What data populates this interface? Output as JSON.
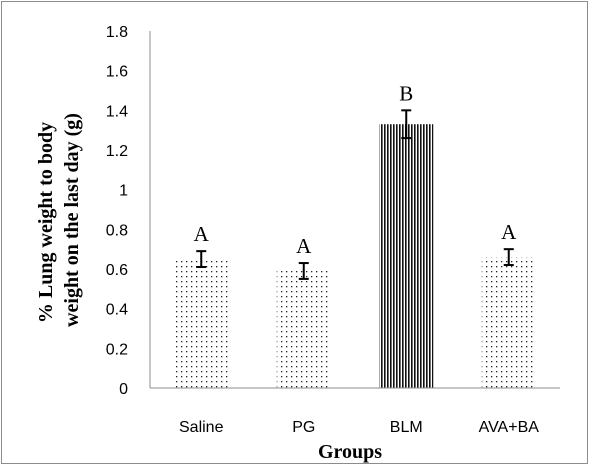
{
  "chart_data": {
    "type": "bar",
    "categories": [
      "Saline",
      "PG",
      "BLM",
      "AVA+BA"
    ],
    "values": [
      0.65,
      0.59,
      1.33,
      0.66
    ],
    "error": [
      0.04,
      0.04,
      0.07,
      0.04
    ],
    "significance_letters": [
      "A",
      "A",
      "B",
      "A"
    ],
    "patterns": [
      "dots",
      "dots",
      "vertical-stripes",
      "dots"
    ],
    "xlabel": "Groups",
    "ylabel_lines": [
      "% Lung weight to body",
      "weight on the last day (g)"
    ],
    "ylim": [
      0,
      1.8
    ],
    "yticks": [
      "0",
      "0.2",
      "0.4",
      "0.6",
      "0.8",
      "1",
      "1.2",
      "1.4",
      "1.6",
      "1.8"
    ],
    "grid": false
  }
}
